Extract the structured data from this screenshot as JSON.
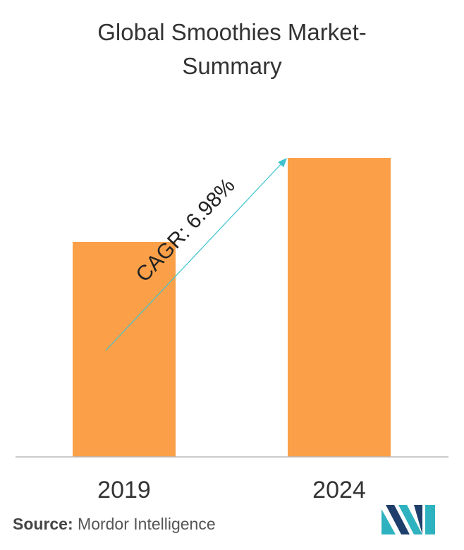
{
  "title_line1": "Global Smoothies Market-",
  "title_line2": "Summary",
  "chart_data": {
    "type": "bar",
    "categories": [
      "2019",
      "2024"
    ],
    "values": [
      1.0,
      1.39
    ],
    "annotation": "CAGR: 6.98%",
    "bar_color": "#FBA048",
    "arrow_color": "#3EC3CF",
    "axis_color": "#BBBBBB"
  },
  "source_label": "Source:",
  "source_text": "Mordor Intelligence",
  "logo_colors": [
    "#1E3F6B",
    "#2FB2BF"
  ]
}
